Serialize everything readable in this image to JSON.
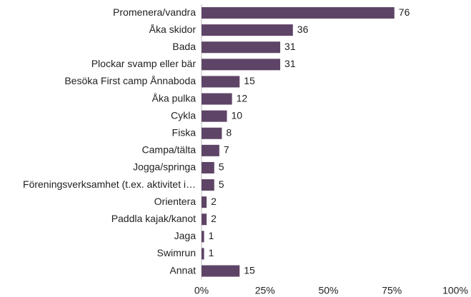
{
  "chart_data": {
    "type": "hbar",
    "categories": [
      "Promenera/vandra",
      "Åka skidor",
      "Bada",
      "Plockar svamp eller bär",
      "Besöka First camp Ånnaboda",
      "Åka pulka",
      "Cykla",
      "Fiska",
      "Campa/tälta",
      "Jogga/springa",
      "Föreningsverksamhet (t.ex. aktivitet i…",
      "Orientera",
      "Paddla kajak/kanot",
      "Jaga",
      "Swimrun",
      "Annat"
    ],
    "values": [
      76,
      36,
      31,
      31,
      15,
      12,
      10,
      8,
      7,
      5,
      5,
      2,
      2,
      1,
      1,
      15
    ],
    "color": "#5e4466",
    "xlim": [
      0,
      100
    ],
    "xticks": [
      {
        "value": 0,
        "label": "0%"
      },
      {
        "value": 25,
        "label": "25%"
      },
      {
        "value": 50,
        "label": "50%"
      },
      {
        "value": 75,
        "label": "75%"
      },
      {
        "value": 100,
        "label": "100%"
      }
    ],
    "grid": false
  }
}
